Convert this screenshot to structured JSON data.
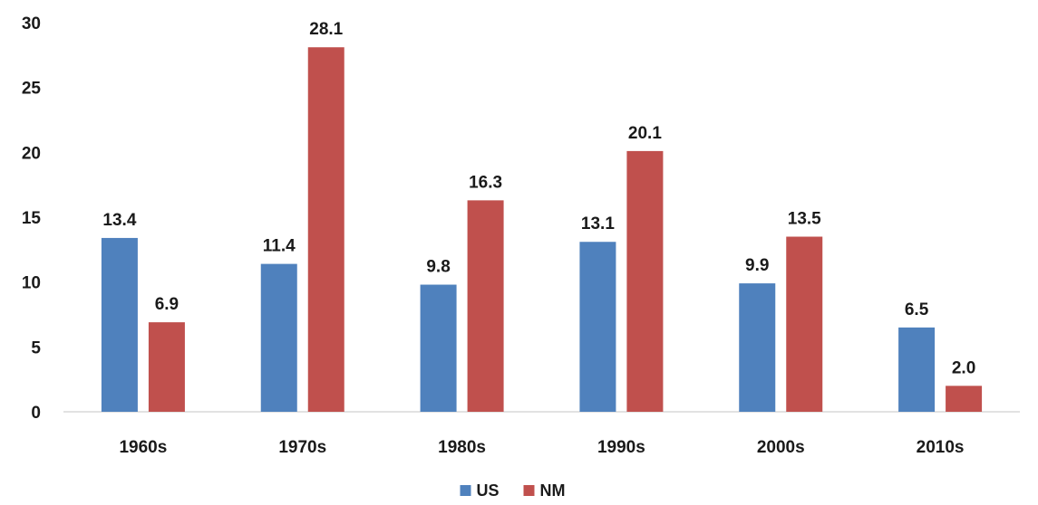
{
  "chart_data": {
    "type": "bar",
    "title": "",
    "xlabel": "",
    "ylabel": "",
    "categories": [
      "1960s",
      "1970s",
      "1980s",
      "1990s",
      "2000s",
      "2010s"
    ],
    "series": [
      {
        "name": "US",
        "color": "#4F81BD",
        "values": [
          13.4,
          11.4,
          9.8,
          13.1,
          9.9,
          6.5
        ],
        "labels": [
          "13.4",
          "11.4",
          "9.8",
          "13.1",
          "9.9",
          "6.5"
        ]
      },
      {
        "name": "NM",
        "color": "#C0504D",
        "values": [
          6.9,
          28.1,
          16.3,
          20.1,
          13.5,
          2.0
        ],
        "labels": [
          "6.9",
          "28.1",
          "16.3",
          "20.1",
          "13.5",
          "2.0"
        ]
      }
    ],
    "ylim": [
      0,
      30
    ],
    "yticks": [
      0,
      5,
      10,
      15,
      20,
      25,
      30
    ],
    "ytick_labels": [
      "0",
      "5",
      "10",
      "15",
      "20",
      "25",
      "30"
    ],
    "grid": false,
    "legend": "bottom-center"
  }
}
